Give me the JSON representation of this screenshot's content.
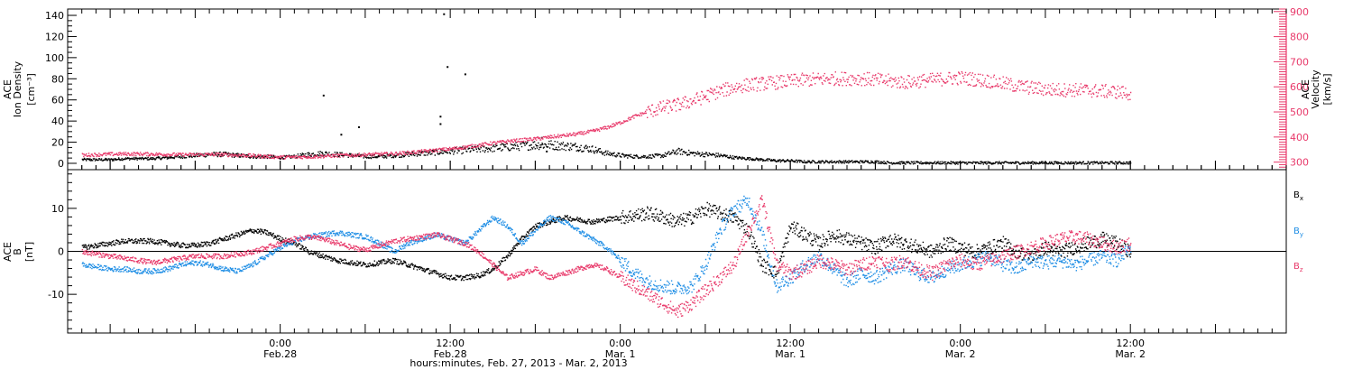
{
  "chart_data": [
    {
      "type": "scatter",
      "panel": "top",
      "ylabel_lines": [
        "ACE",
        "Ion Density"
      ],
      "yunit": "[cm⁻³]",
      "y2label_lines": [
        "ACE",
        "Velocity"
      ],
      "y2unit": "[km/s]",
      "ylim": [
        -6,
        146
      ],
      "y2lim": [
        270,
        910
      ],
      "yticks": [
        0,
        20,
        40,
        60,
        80,
        100,
        120,
        140
      ],
      "y2ticks": [
        300,
        400,
        500,
        600,
        700,
        800,
        900
      ],
      "series": [
        {
          "name": "",
          "axis": "left",
          "color": "#000000",
          "x": [
            -28,
            -26,
            -24,
            -22,
            -20,
            -18,
            -16,
            -14,
            -12,
            -10,
            -8,
            -6,
            -4,
            -2,
            0,
            2,
            4,
            6,
            8,
            10,
            12,
            14,
            16,
            18,
            20,
            22,
            24,
            26,
            28,
            30,
            32,
            34,
            36,
            38,
            40,
            42,
            44,
            46,
            48,
            50,
            52,
            54,
            56,
            58,
            60,
            62,
            64,
            66,
            68,
            70,
            72,
            74,
            76,
            78,
            80,
            82,
            84,
            86,
            88,
            90,
            92,
            94,
            96,
            98,
            100,
            102,
            104,
            106,
            108,
            110,
            112,
            114,
            116,
            118,
            120
          ],
          "values": [
            4,
            4,
            4,
            5,
            5,
            5,
            6,
            7,
            8,
            9,
            9,
            8,
            7,
            7,
            6,
            7,
            9,
            10,
            9,
            8,
            7,
            7,
            8,
            9,
            10,
            11,
            12,
            13,
            14,
            15,
            16,
            17,
            18,
            18,
            17,
            16,
            14,
            10,
            8,
            7,
            7,
            8,
            12,
            10,
            9,
            8,
            6,
            5,
            4,
            3,
            3,
            2,
            2,
            2,
            2,
            2,
            2,
            1,
            1,
            1,
            1,
            1,
            1,
            1,
            1,
            1,
            1,
            1,
            1,
            1,
            1,
            1,
            1,
            1,
            1
          ]
        },
        {
          "name": "",
          "axis": "left",
          "color": "#000000",
          "x": [
            6,
            8.5,
            11,
            22.5,
            22.5,
            23,
            23.5,
            26,
            36.8,
            37.5
          ],
          "values": [
            65,
            28,
            35,
            45,
            38,
            142,
            92,
            85,
            25,
            12
          ],
          "marker": "isolated"
        },
        {
          "name": "",
          "axis": "right",
          "color": "#e8396a",
          "x": [
            -28,
            -26,
            -24,
            -22,
            -20,
            -18,
            -16,
            -14,
            -12,
            -10,
            -8,
            -6,
            -4,
            -2,
            0,
            2,
            4,
            6,
            8,
            10,
            12,
            14,
            16,
            18,
            20,
            22,
            24,
            26,
            28,
            30,
            32,
            34,
            36,
            38,
            40,
            42,
            44,
            46,
            48,
            50,
            52,
            54,
            56,
            58,
            60,
            62,
            64,
            66,
            68,
            70,
            72,
            74,
            76,
            78,
            80,
            82,
            84,
            86,
            88,
            90,
            92,
            94,
            96,
            98,
            100,
            102,
            104,
            106,
            108,
            110,
            112,
            114,
            116,
            118,
            120
          ],
          "values": [
            330,
            332,
            334,
            335,
            335,
            334,
            333,
            332,
            332,
            333,
            332,
            330,
            328,
            325,
            322,
            322,
            324,
            326,
            328,
            330,
            332,
            334,
            336,
            340,
            345,
            350,
            355,
            362,
            370,
            378,
            385,
            390,
            395,
            402,
            408,
            415,
            425,
            440,
            460,
            485,
            505,
            520,
            530,
            545,
            565,
            585,
            600,
            610,
            615,
            620,
            625,
            630,
            632,
            635,
            635,
            635,
            630,
            625,
            620,
            625,
            630,
            635,
            638,
            632,
            625,
            615,
            605,
            598,
            592,
            590,
            590,
            588,
            585,
            582,
            575
          ]
        }
      ]
    },
    {
      "type": "scatter",
      "panel": "bottom",
      "ylabel_lines": [
        "ACE",
        "B"
      ],
      "yunit": "[nT]",
      "ylim": [
        -19,
        19
      ],
      "yticks": [
        -10,
        0,
        10
      ],
      "hline": 0,
      "legend_position": "right",
      "series": [
        {
          "name": "B",
          "subscript": "x",
          "color": "#000000",
          "x": [
            -28,
            -26,
            -24,
            -22,
            -20,
            -18,
            -16,
            -14,
            -12,
            -10,
            -8,
            -6,
            -4,
            -2,
            0,
            2,
            4,
            6,
            8,
            10,
            12,
            14,
            16,
            18,
            20,
            22,
            24,
            26,
            28,
            30,
            32,
            34,
            36,
            38,
            40,
            42,
            44,
            46,
            48,
            50,
            52,
            54,
            56,
            58,
            60,
            62,
            64,
            66,
            68,
            70,
            72,
            74,
            76,
            78,
            80,
            82,
            84,
            86,
            88,
            90,
            92,
            94,
            96,
            98,
            100,
            102,
            104,
            106,
            108,
            110,
            112,
            114,
            116,
            118,
            120
          ],
          "values": [
            1,
            1.5,
            2,
            2.5,
            2.5,
            2.5,
            2,
            1.5,
            1.5,
            2,
            3,
            4,
            5,
            4.5,
            3,
            2,
            0,
            -1,
            -2,
            -2.5,
            -3,
            -2.5,
            -2,
            -3,
            -4,
            -5,
            -6,
            -6,
            -5.5,
            -4,
            -1,
            3,
            6,
            7,
            8,
            7.5,
            7,
            7.5,
            8,
            8.5,
            9,
            8,
            7,
            8,
            10,
            9,
            8,
            5,
            -3,
            -5,
            6,
            4,
            2,
            4,
            3,
            2,
            1,
            3,
            2,
            1,
            0,
            2,
            1,
            0,
            1,
            2,
            0,
            -1,
            1,
            0,
            1,
            2,
            3,
            2,
            0
          ]
        },
        {
          "name": "B",
          "subscript": "y",
          "color": "#1f8ee5",
          "x": [
            -28,
            -26,
            -24,
            -22,
            -20,
            -18,
            -16,
            -14,
            -12,
            -10,
            -8,
            -6,
            -4,
            -2,
            0,
            2,
            4,
            6,
            8,
            10,
            12,
            14,
            16,
            18,
            20,
            22,
            24,
            26,
            28,
            30,
            32,
            34,
            36,
            38,
            40,
            42,
            44,
            46,
            48,
            50,
            52,
            54,
            56,
            58,
            60,
            62,
            64,
            66,
            68,
            70,
            72,
            74,
            76,
            78,
            80,
            82,
            84,
            86,
            88,
            90,
            92,
            94,
            96,
            98,
            100,
            102,
            104,
            106,
            108,
            110,
            112,
            114,
            116,
            118,
            120
          ],
          "values": [
            -3,
            -3.5,
            -4,
            -4,
            -4.5,
            -4.5,
            -4,
            -3,
            -2.5,
            -3,
            -4,
            -4.5,
            -3,
            -1,
            1,
            2.5,
            3.5,
            4,
            4.5,
            4,
            3.5,
            2,
            0,
            2,
            3,
            4,
            3,
            2,
            5,
            8,
            6,
            2,
            5,
            8,
            7,
            5,
            3,
            1,
            -2,
            -5,
            -7,
            -8,
            -8.5,
            -8,
            -3,
            5,
            10,
            12,
            4,
            -8,
            -6,
            -3,
            -1,
            -4,
            -7,
            -5,
            -6,
            -4,
            -3,
            -5,
            -6,
            -4,
            -3,
            -2,
            -1,
            -3,
            -4,
            -2,
            -2.5,
            -2,
            -3,
            -2,
            -1,
            -2,
            1
          ]
        },
        {
          "name": "B",
          "subscript": "z",
          "color": "#e8396a",
          "x": [
            -28,
            -26,
            -24,
            -22,
            -20,
            -18,
            -16,
            -14,
            -12,
            -10,
            -8,
            -6,
            -4,
            -2,
            0,
            2,
            4,
            6,
            8,
            10,
            12,
            14,
            16,
            18,
            20,
            22,
            24,
            26,
            28,
            30,
            32,
            34,
            36,
            38,
            40,
            42,
            44,
            46,
            48,
            50,
            52,
            54,
            56,
            58,
            60,
            62,
            64,
            66,
            68,
            70,
            72,
            74,
            76,
            78,
            80,
            82,
            84,
            86,
            88,
            90,
            92,
            94,
            96,
            98,
            100,
            102,
            104,
            106,
            108,
            110,
            112,
            114,
            116,
            118,
            120
          ],
          "values": [
            0,
            -0.5,
            -1,
            -1.5,
            -2,
            -2.5,
            -2,
            -1.5,
            -1,
            -1,
            -1,
            -0.5,
            0,
            1,
            2,
            3,
            3.5,
            3,
            2,
            1,
            0.5,
            1.5,
            2.5,
            3,
            3.5,
            4,
            3,
            2,
            0,
            -3,
            -6,
            -5,
            -4,
            -6,
            -5,
            -4,
            -3,
            -4,
            -6,
            -8,
            -10,
            -12,
            -14,
            -12,
            -9,
            -6,
            -3,
            5,
            12,
            -3,
            -5,
            -4,
            -2,
            -3,
            -4,
            -3,
            -2,
            -3,
            -2,
            -4,
            -5,
            -3,
            -2,
            -3,
            -2,
            -1,
            0,
            1,
            2,
            3,
            3.5,
            3,
            2,
            1,
            2
          ]
        }
      ]
    }
  ],
  "shared_x": {
    "xlim": [
      -30,
      142
    ],
    "xticks": [
      {
        "value": 0,
        "time": "0:00",
        "date": "Feb.28"
      },
      {
        "value": 24,
        "time": "12:00",
        "date": "Feb.28"
      },
      {
        "value": 48,
        "time": "0:00",
        "date": "Mar. 1"
      },
      {
        "value": 72,
        "time": "12:00",
        "date": "Mar. 1"
      },
      {
        "value": 96,
        "time": "0:00",
        "date": "Mar. 2"
      },
      {
        "value": 120,
        "time": "12:00",
        "date": "Mar. 2"
      }
    ],
    "xlabel": "hours:minutes, Feb. 27, 2013 - Mar.  2, 2013"
  }
}
